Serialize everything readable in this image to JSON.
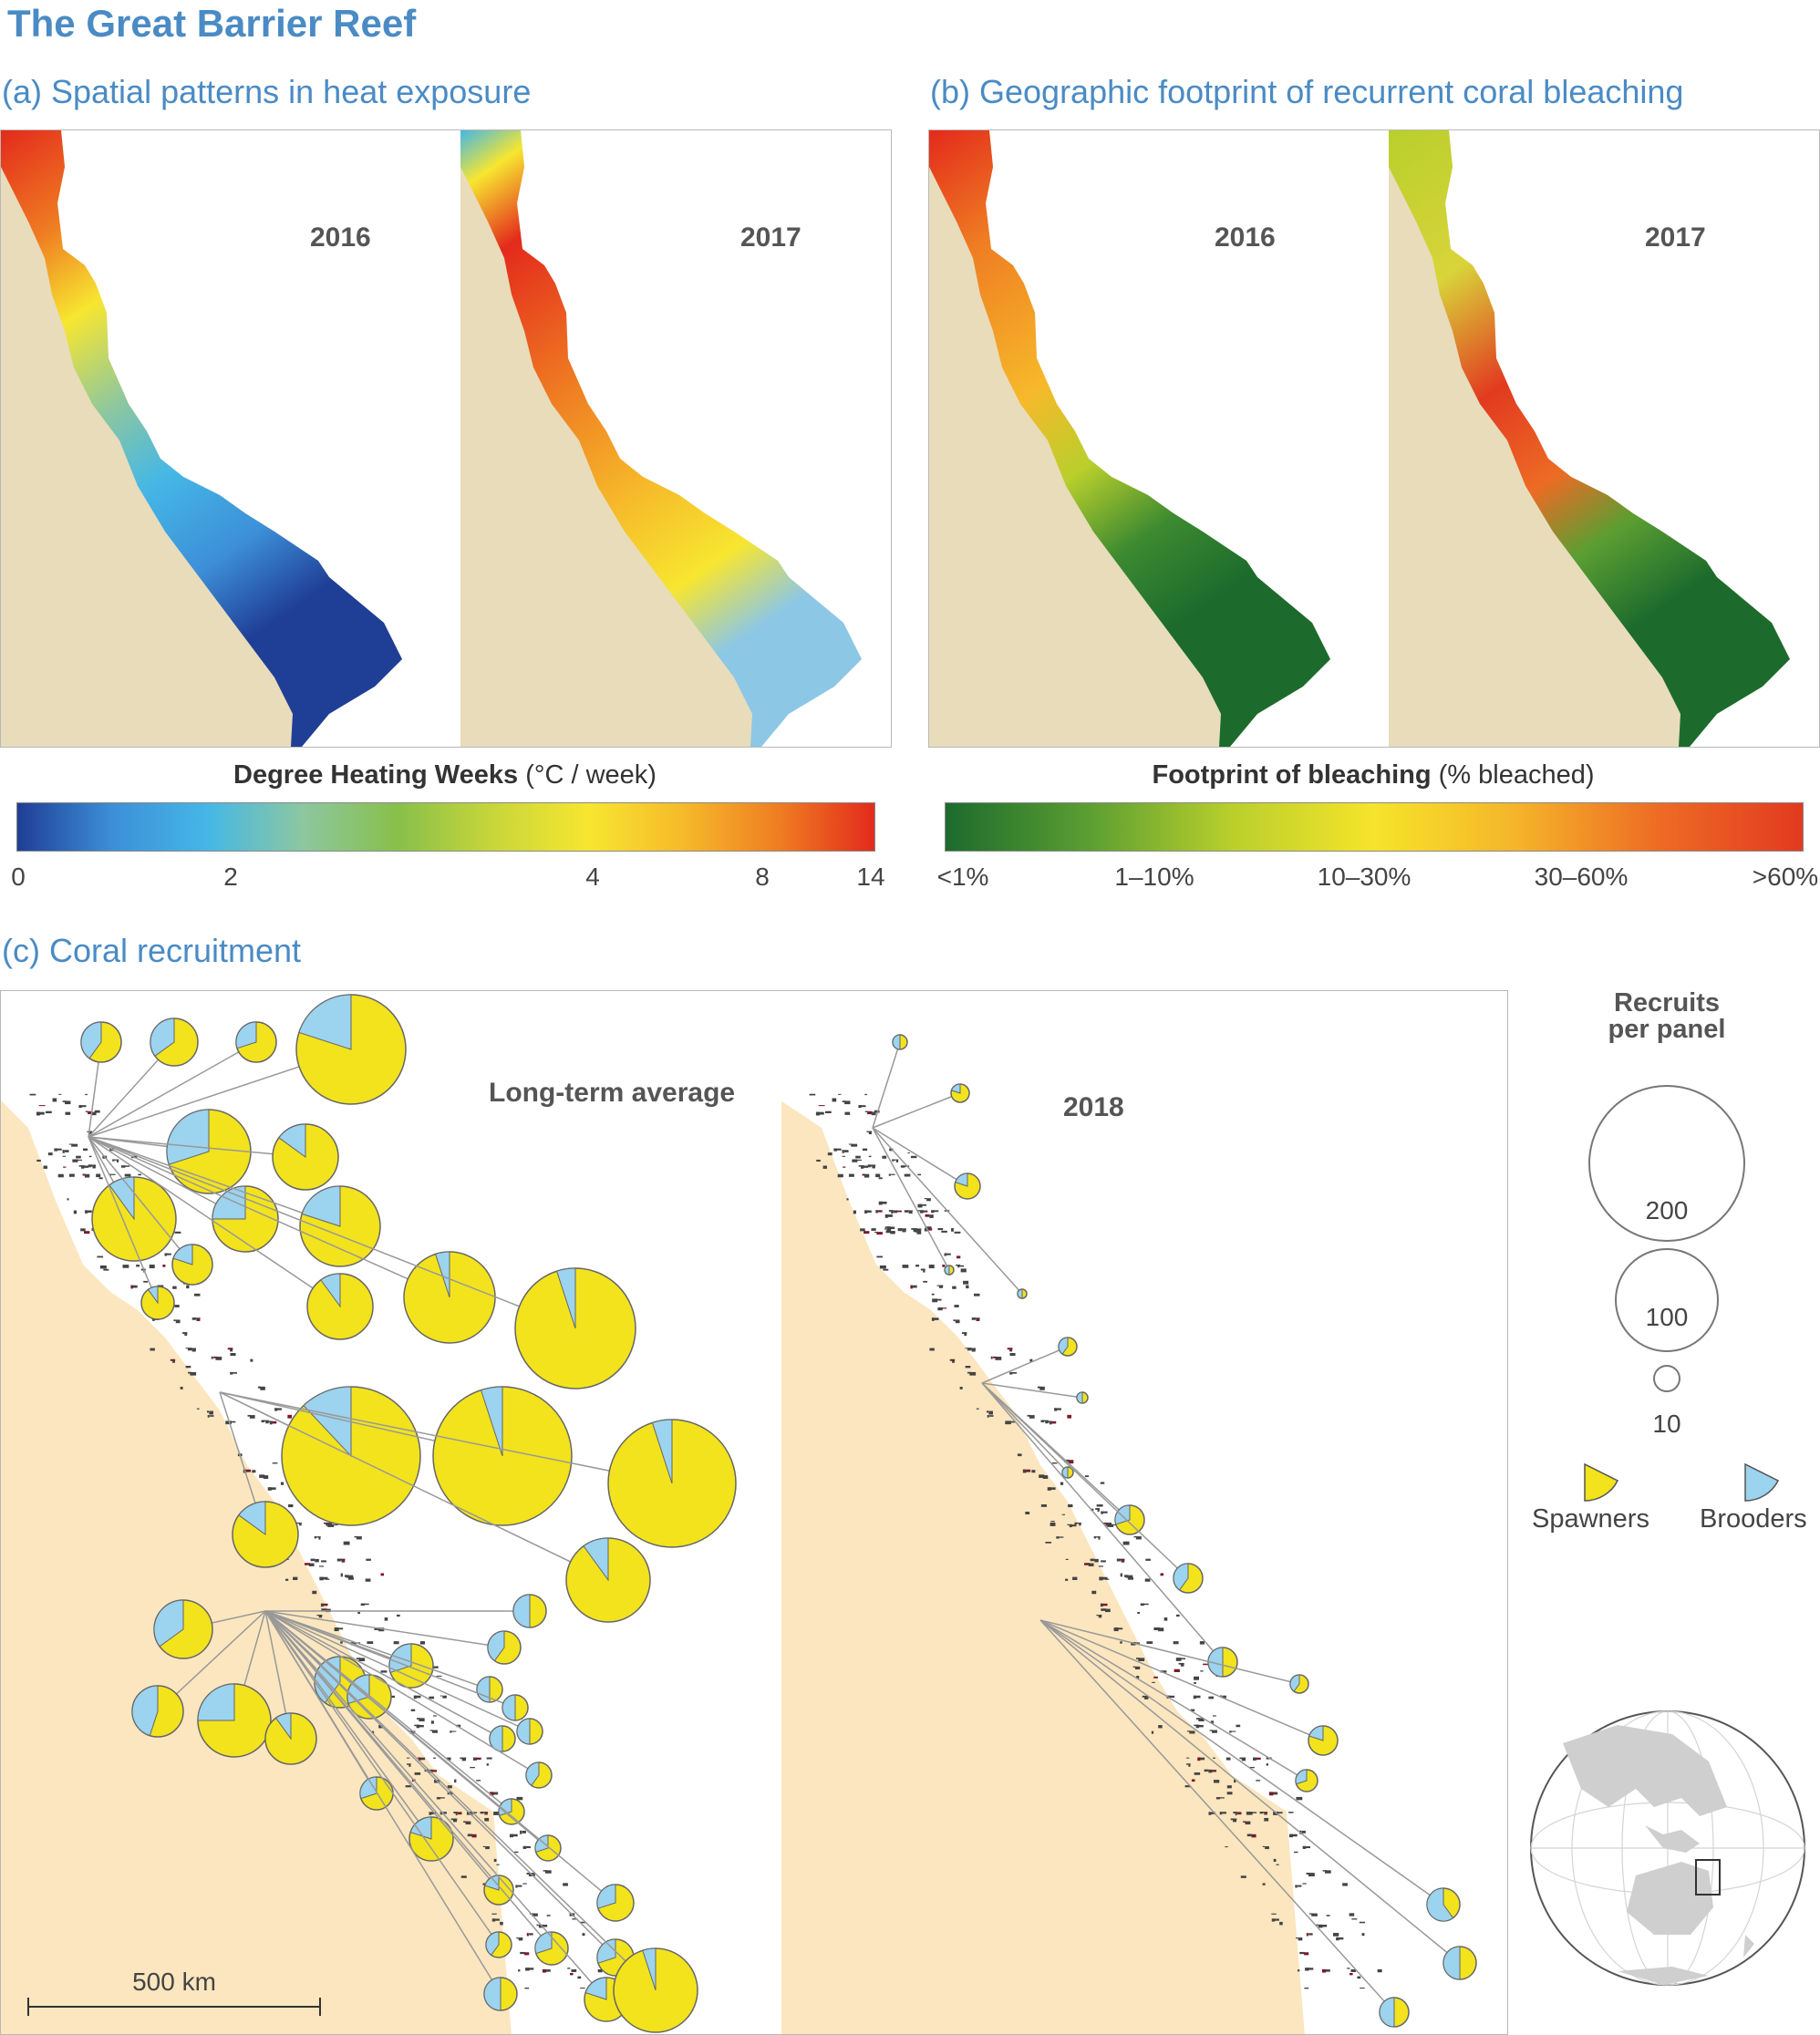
{
  "figure_title": "The Great Barrier Reef",
  "panel_a": {
    "title": "(a) Spatial patterns in heat exposure",
    "maps": [
      {
        "year": "2016"
      },
      {
        "year": "2017"
      }
    ],
    "scale": {
      "title_bold": "Degree Heating Weeks",
      "title_unit": " (°C / week)",
      "ticks": [
        "0",
        "2",
        "4",
        "8",
        "14"
      ],
      "colors": [
        "#1f3e96",
        "#3d8fd8",
        "#45b7e6",
        "#8cc7a0",
        "#88c04a",
        "#c8d63a",
        "#f7e630",
        "#f6b92a",
        "#ef7d22",
        "#e32a1c"
      ]
    }
  },
  "panel_b": {
    "title": "(b) Geographic footprint of recurrent coral bleaching",
    "maps": [
      {
        "year": "2016"
      },
      {
        "year": "2017"
      }
    ],
    "scale": {
      "title_bold": "Footprint of bleaching",
      "title_unit": " (% bleached)",
      "ticks": [
        "<1%",
        "1–10%",
        "10–30%",
        "30–60%",
        ">60%"
      ],
      "colors": [
        "#1c6b2d",
        "#5b9e32",
        "#b9cf2c",
        "#f6e42a",
        "#f5b42a",
        "#ed6b24",
        "#e23a20"
      ]
    }
  },
  "panel_c": {
    "title": "(c) Coral recruitment",
    "maps": [
      {
        "label": "Long-term average"
      },
      {
        "label": "2018"
      }
    ],
    "scale_bar": "500 km",
    "legend": {
      "title": "Recruits per panel",
      "sizes": [
        "200",
        "100",
        "10"
      ],
      "spawners": "Spawners",
      "brooders": "Brooders"
    },
    "colors": {
      "spawners": "#f2e31d",
      "brooders": "#9cd3ef",
      "land": "#fbe6bf"
    }
  }
}
